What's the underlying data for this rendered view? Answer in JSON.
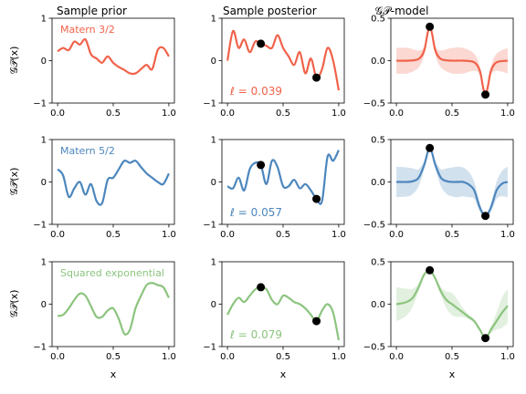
{
  "column_titles": [
    "Sample prior",
    "Sample posterior",
    "𝒢𝒫-model"
  ],
  "ylabel": "𝒢𝒫(x)",
  "xlabel": "x",
  "rows": [
    {
      "kernel": "Matern 3/2",
      "color": "#f0624a",
      "length_scale": "ℓ = 0.039"
    },
    {
      "kernel": "Matern 5/2",
      "color": "#4c86bd",
      "length_scale": "ℓ = 0.057"
    },
    {
      "kernel": "Squared exponential",
      "color": "#8cc47f",
      "length_scale": "ℓ = 0.079"
    }
  ],
  "chart_data": [
    {
      "type": "line",
      "row": 0,
      "col": 0,
      "series_color": "#f0624a",
      "x": [
        0,
        0.05,
        0.1,
        0.15,
        0.2,
        0.25,
        0.3,
        0.35,
        0.4,
        0.45,
        0.5,
        0.55,
        0.6,
        0.65,
        0.7,
        0.75,
        0.8,
        0.85,
        0.9,
        0.95,
        1.0
      ],
      "y": [
        0.22,
        0.3,
        0.25,
        0.45,
        0.38,
        0.5,
        0.15,
        0.05,
        -0.05,
        0.1,
        -0.05,
        -0.15,
        -0.22,
        -0.3,
        -0.3,
        -0.2,
        -0.1,
        -0.2,
        0.25,
        0.3,
        0.1
      ],
      "xlim": [
        -0.05,
        1.05
      ],
      "ylim": [
        -1,
        1
      ],
      "xticks": [
        "0.0",
        "0.5",
        "1.0"
      ],
      "yticks": [
        "-1",
        "0",
        "1"
      ],
      "annotation": "Matern 3/2"
    },
    {
      "type": "line",
      "row": 0,
      "col": 1,
      "series_color": "#f0624a",
      "x": [
        0,
        0.05,
        0.1,
        0.15,
        0.2,
        0.25,
        0.3,
        0.35,
        0.4,
        0.45,
        0.5,
        0.55,
        0.6,
        0.65,
        0.7,
        0.75,
        0.8,
        0.85,
        0.9,
        0.95,
        1.0
      ],
      "y": [
        0.0,
        0.7,
        0.3,
        0.5,
        0.2,
        0.45,
        0.4,
        0.35,
        0.3,
        0.6,
        0.3,
        0.1,
        -0.1,
        0.2,
        -0.3,
        0.05,
        -0.4,
        -0.2,
        0.3,
        0.0,
        -0.7
      ],
      "points": [
        [
          0.3,
          0.4
        ],
        [
          0.8,
          -0.4
        ]
      ],
      "xlim": [
        -0.05,
        1.05
      ],
      "ylim": [
        -1,
        1
      ],
      "xticks": [
        "0.0",
        "0.5",
        "1.0"
      ],
      "yticks": [
        "-1",
        "0",
        "1"
      ],
      "annotation": "ℓ = 0.039"
    },
    {
      "type": "area",
      "row": 0,
      "col": 2,
      "series_color": "#f0624a",
      "x": [
        0,
        0.1,
        0.2,
        0.25,
        0.28,
        0.3,
        0.32,
        0.35,
        0.4,
        0.5,
        0.6,
        0.7,
        0.75,
        0.78,
        0.8,
        0.82,
        0.85,
        0.9,
        1.0
      ],
      "mean": [
        0,
        0,
        0.02,
        0.12,
        0.32,
        0.4,
        0.32,
        0.12,
        0.02,
        0,
        0,
        -0.02,
        -0.12,
        -0.32,
        -0.4,
        -0.32,
        -0.12,
        -0.02,
        0
      ],
      "band": [
        0.15,
        0.15,
        0.1,
        0.05,
        0.02,
        0,
        0.02,
        0.05,
        0.1,
        0.15,
        0.15,
        0.1,
        0.05,
        0.02,
        0,
        0.02,
        0.05,
        0.1,
        0.15
      ],
      "points": [
        [
          0.3,
          0.4
        ],
        [
          0.8,
          -0.4
        ]
      ],
      "xlim": [
        -0.05,
        1.05
      ],
      "ylim": [
        -0.5,
        0.5
      ],
      "xticks": [
        "0.0",
        "0.5",
        "1.0"
      ],
      "yticks": [
        "-0.5",
        "0.0",
        "0.5"
      ]
    },
    {
      "type": "line",
      "row": 1,
      "col": 0,
      "series_color": "#4c86bd",
      "x": [
        0,
        0.05,
        0.1,
        0.15,
        0.2,
        0.25,
        0.3,
        0.35,
        0.4,
        0.45,
        0.5,
        0.55,
        0.6,
        0.65,
        0.7,
        0.75,
        0.8,
        0.85,
        0.9,
        0.95,
        1.0
      ],
      "y": [
        0.3,
        0.15,
        -0.35,
        -0.15,
        0.0,
        -0.3,
        -0.05,
        -0.45,
        -0.5,
        0.05,
        0.1,
        0.3,
        0.5,
        0.45,
        0.5,
        0.35,
        0.2,
        0.1,
        0.0,
        -0.05,
        0.2
      ],
      "xlim": [
        -0.05,
        1.05
      ],
      "ylim": [
        -1,
        1
      ],
      "xticks": [
        "0.0",
        "0.5",
        "1.0"
      ],
      "yticks": [
        "-1",
        "0",
        "1"
      ],
      "annotation": "Matern 5/2"
    },
    {
      "type": "line",
      "row": 1,
      "col": 1,
      "series_color": "#4c86bd",
      "x": [
        0,
        0.05,
        0.1,
        0.15,
        0.2,
        0.25,
        0.3,
        0.35,
        0.4,
        0.45,
        0.5,
        0.55,
        0.6,
        0.65,
        0.7,
        0.75,
        0.8,
        0.85,
        0.9,
        0.95,
        1.0
      ],
      "y": [
        -0.1,
        -0.15,
        0.1,
        -0.2,
        0.3,
        0.45,
        0.4,
        -0.05,
        0.5,
        0.35,
        -0.1,
        -0.1,
        0.05,
        -0.15,
        -0.05,
        -0.2,
        -0.4,
        -0.45,
        0.6,
        0.5,
        0.75
      ],
      "points": [
        [
          0.3,
          0.4
        ],
        [
          0.8,
          -0.4
        ]
      ],
      "xlim": [
        -0.05,
        1.05
      ],
      "ylim": [
        -1,
        1
      ],
      "xticks": [
        "0.0",
        "0.5",
        "1.0"
      ],
      "yticks": [
        "-1",
        "0",
        "1"
      ],
      "annotation": "ℓ = 0.057"
    },
    {
      "type": "area",
      "row": 1,
      "col": 2,
      "series_color": "#4c86bd",
      "x": [
        0,
        0.1,
        0.15,
        0.2,
        0.25,
        0.3,
        0.35,
        0.4,
        0.45,
        0.5,
        0.55,
        0.6,
        0.65,
        0.7,
        0.75,
        0.8,
        0.85,
        0.9,
        0.95,
        1.0
      ],
      "mean": [
        0,
        0,
        0.01,
        0.05,
        0.2,
        0.4,
        0.2,
        0.05,
        0.01,
        0,
        0,
        0,
        -0.03,
        -0.1,
        -0.3,
        -0.4,
        -0.3,
        -0.1,
        -0.02,
        0
      ],
      "band": [
        0.18,
        0.17,
        0.15,
        0.1,
        0.05,
        0,
        0.05,
        0.1,
        0.15,
        0.17,
        0.18,
        0.17,
        0.15,
        0.1,
        0.05,
        0,
        0.05,
        0.1,
        0.15,
        0.18
      ],
      "points": [
        [
          0.3,
          0.4
        ],
        [
          0.8,
          -0.4
        ]
      ],
      "xlim": [
        -0.05,
        1.05
      ],
      "ylim": [
        -0.5,
        0.5
      ],
      "xticks": [
        "0.0",
        "0.5",
        "1.0"
      ],
      "yticks": [
        "-0.5",
        "0.0",
        "0.5"
      ]
    },
    {
      "type": "line",
      "row": 2,
      "col": 0,
      "series_color": "#8cc47f",
      "x": [
        0,
        0.05,
        0.1,
        0.15,
        0.2,
        0.25,
        0.3,
        0.35,
        0.4,
        0.45,
        0.5,
        0.55,
        0.6,
        0.65,
        0.7,
        0.75,
        0.8,
        0.85,
        0.9,
        0.95,
        1.0
      ],
      "y": [
        -0.28,
        -0.25,
        -0.1,
        0.1,
        0.25,
        0.2,
        -0.05,
        -0.3,
        -0.3,
        -0.15,
        -0.1,
        -0.35,
        -0.7,
        -0.6,
        -0.1,
        0.2,
        0.45,
        0.5,
        0.45,
        0.4,
        0.15
      ],
      "xlim": [
        -0.05,
        1.05
      ],
      "ylim": [
        -1,
        1
      ],
      "xticks": [
        "0.0",
        "0.5",
        "1.0"
      ],
      "yticks": [
        "-1",
        "0",
        "1"
      ],
      "annotation": "Squared exponential"
    },
    {
      "type": "line",
      "row": 2,
      "col": 1,
      "series_color": "#8cc47f",
      "x": [
        0,
        0.05,
        0.1,
        0.15,
        0.2,
        0.25,
        0.3,
        0.35,
        0.4,
        0.45,
        0.5,
        0.55,
        0.6,
        0.65,
        0.7,
        0.75,
        0.8,
        0.85,
        0.9,
        0.95,
        1.0
      ],
      "y": [
        -0.25,
        0.0,
        0.15,
        0.05,
        0.2,
        0.35,
        0.4,
        0.35,
        0.1,
        0.0,
        0.2,
        0.15,
        0.05,
        0.0,
        -0.1,
        -0.25,
        -0.4,
        -0.15,
        0.0,
        -0.2,
        -0.85
      ],
      "points": [
        [
          0.3,
          0.4
        ],
        [
          0.8,
          -0.4
        ]
      ],
      "xlim": [
        -0.05,
        1.05
      ],
      "ylim": [
        -1,
        1
      ],
      "xticks": [
        "0.0",
        "0.5",
        "1.0"
      ],
      "yticks": [
        "-1",
        "0",
        "1"
      ],
      "annotation": "ℓ = 0.079"
    },
    {
      "type": "area",
      "row": 2,
      "col": 2,
      "series_color": "#8cc47f",
      "x": [
        0,
        0.05,
        0.1,
        0.15,
        0.2,
        0.25,
        0.3,
        0.35,
        0.4,
        0.45,
        0.5,
        0.55,
        0.6,
        0.65,
        0.7,
        0.75,
        0.8,
        0.85,
        0.9,
        0.95,
        1.0
      ],
      "mean": [
        0,
        0.01,
        0.03,
        0.08,
        0.2,
        0.35,
        0.4,
        0.3,
        0.15,
        0.05,
        0.0,
        -0.05,
        -0.1,
        -0.15,
        -0.2,
        -0.3,
        -0.4,
        -0.3,
        -0.2,
        -0.1,
        -0.02
      ],
      "band": [
        0.2,
        0.18,
        0.15,
        0.1,
        0.05,
        0.02,
        0,
        0.02,
        0.05,
        0.1,
        0.13,
        0.1,
        0.05,
        0.03,
        0.02,
        0.01,
        0,
        0.04,
        0.1,
        0.18,
        0.2
      ],
      "points": [
        [
          0.3,
          0.4
        ],
        [
          0.8,
          -0.4
        ]
      ],
      "xlim": [
        -0.05,
        1.05
      ],
      "ylim": [
        -0.5,
        0.5
      ],
      "xticks": [
        "0.0",
        "0.5",
        "1.0"
      ],
      "yticks": [
        "-0.5",
        "0.0",
        "0.5"
      ]
    }
  ]
}
